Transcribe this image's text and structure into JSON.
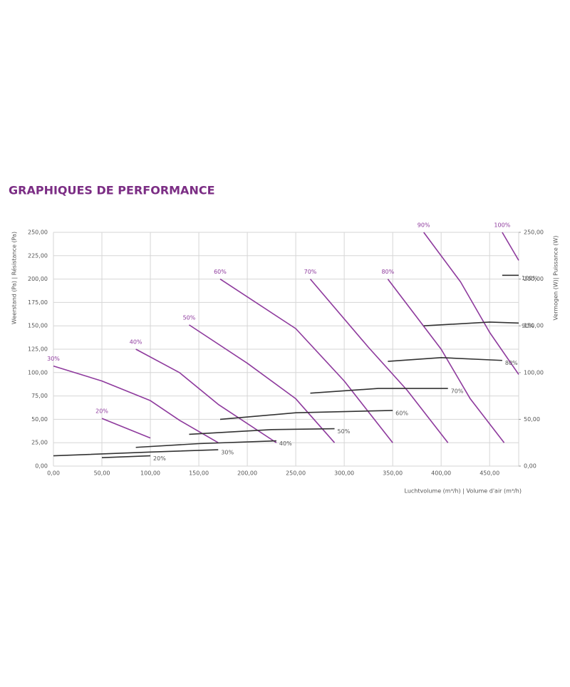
{
  "chart_data": {
    "type": "line",
    "title": "GRAPHIQUES DE PERFORMANCE",
    "y_label": "Weerstand (Pa) | Résistance (Pa)",
    "y2_label": "Vermogen (W)| Puissance (W)",
    "x_label": "Luchtvolume (m³/h) | Volume d'air (m³/h)",
    "xlim": [
      0,
      480
    ],
    "ylim": [
      0,
      250
    ],
    "y2lim": [
      0,
      250
    ],
    "grid": true,
    "xticks": [
      {
        "value": 0,
        "label": "0,00"
      },
      {
        "value": 50,
        "label": "50,00"
      },
      {
        "value": 100,
        "label": "100,00"
      },
      {
        "value": 150,
        "label": "150,00"
      },
      {
        "value": 200,
        "label": "200,00"
      },
      {
        "value": 250,
        "label": "250,00"
      },
      {
        "value": 300,
        "label": "300,00"
      },
      {
        "value": 350,
        "label": "350,00"
      },
      {
        "value": 400,
        "label": "400,00"
      },
      {
        "value": 450,
        "label": "450,00"
      }
    ],
    "yticks": [
      {
        "value": 0,
        "label": "0,00"
      },
      {
        "value": 25,
        "label": "25,00"
      },
      {
        "value": 50,
        "label": "50,00"
      },
      {
        "value": 75,
        "label": "75,00"
      },
      {
        "value": 100,
        "label": "100,00"
      },
      {
        "value": 125,
        "label": "125,00"
      },
      {
        "value": 150,
        "label": "150,00"
      },
      {
        "value": 175,
        "label": "175,00"
      },
      {
        "value": 200,
        "label": "200,00"
      },
      {
        "value": 225,
        "label": "225,00"
      },
      {
        "value": 250,
        "label": "250,00"
      }
    ],
    "y2ticks": [
      {
        "value": 0,
        "label": "0,00"
      },
      {
        "value": 50,
        "label": "50,00"
      },
      {
        "value": 100,
        "label": "100,00"
      },
      {
        "value": 150,
        "label": "150,00"
      },
      {
        "value": 200,
        "label": "200,00"
      },
      {
        "value": 250,
        "label": "250,00"
      }
    ],
    "series": [
      {
        "name": "20%",
        "color": "#8e3a9d",
        "x": [
          50,
          100
        ],
        "values": [
          51,
          30
        ]
      },
      {
        "name": "30%",
        "color": "#8e3a9d",
        "x": [
          0,
          50,
          100,
          130,
          170
        ],
        "values": [
          107,
          91,
          70,
          49,
          25
        ]
      },
      {
        "name": "40%",
        "color": "#8e3a9d",
        "x": [
          85,
          130,
          170,
          230
        ],
        "values": [
          125,
          100,
          66,
          25
        ]
      },
      {
        "name": "50%",
        "color": "#8e3a9d",
        "x": [
          140,
          200,
          250,
          290
        ],
        "values": [
          151,
          110,
          72,
          25
        ]
      },
      {
        "name": "60%",
        "color": "#8e3a9d",
        "x": [
          172,
          250,
          300,
          350
        ],
        "values": [
          200,
          147,
          91,
          25
        ]
      },
      {
        "name": "70%",
        "color": "#8e3a9d",
        "x": [
          265,
          325,
          365,
          407
        ],
        "values": [
          200,
          127,
          81,
          25
        ]
      },
      {
        "name": "80%",
        "color": "#8e3a9d",
        "x": [
          345,
          400,
          430,
          465
        ],
        "values": [
          200,
          125,
          72,
          25
        ]
      },
      {
        "name": "90%",
        "color": "#8e3a9d",
        "x": [
          382,
          420,
          450,
          480
        ],
        "values": [
          250,
          197,
          143,
          98
        ]
      },
      {
        "name": "100%",
        "color": "#8e3a9d",
        "x": [
          463,
          480
        ],
        "values": [
          250,
          220
        ]
      },
      {
        "name": "20%",
        "color": "#333333",
        "axis": "y2",
        "x": [
          50,
          100
        ],
        "values": [
          9,
          11
        ]
      },
      {
        "name": "30%",
        "color": "#333333",
        "axis": "y2",
        "x": [
          0,
          100,
          170
        ],
        "values": [
          11,
          15,
          17.5
        ]
      },
      {
        "name": "40%",
        "color": "#333333",
        "axis": "y2",
        "x": [
          85,
          150,
          230
        ],
        "values": [
          20,
          24,
          27
        ]
      },
      {
        "name": "50%",
        "color": "#333333",
        "axis": "y2",
        "x": [
          140,
          225,
          290
        ],
        "values": [
          34,
          39,
          40
        ]
      },
      {
        "name": "60%",
        "color": "#333333",
        "axis": "y2",
        "x": [
          172,
          250,
          350
        ],
        "values": [
          50,
          57,
          59.5
        ]
      },
      {
        "name": "70%",
        "color": "#333333",
        "axis": "y2",
        "x": [
          265,
          335,
          407
        ],
        "values": [
          78,
          83,
          83
        ]
      },
      {
        "name": "80%",
        "color": "#333333",
        "axis": "y2",
        "x": [
          345,
          400,
          463
        ],
        "values": [
          112,
          116,
          113
        ]
      },
      {
        "name": "90%",
        "color": "#333333",
        "axis": "y2",
        "x": [
          382,
          450,
          480
        ],
        "values": [
          150,
          154,
          153
        ]
      },
      {
        "name": "100%",
        "color": "#333333",
        "axis": "y2",
        "x": [
          463,
          480
        ],
        "values": [
          204,
          204
        ]
      }
    ]
  }
}
